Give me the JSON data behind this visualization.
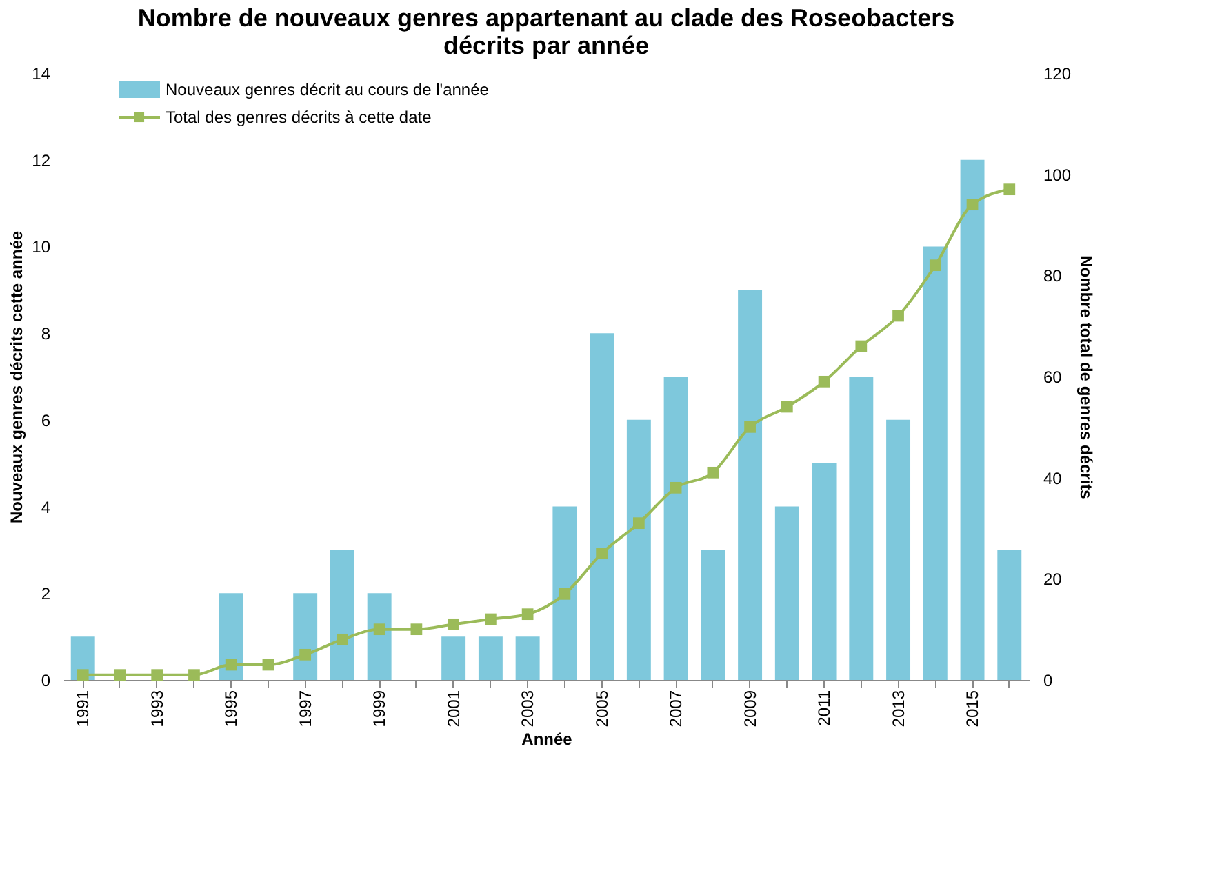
{
  "chart_data": {
    "type": "bar",
    "title": "Nombre de nouveaux genres appartenant au clade des Roseobacters\ndécrits par année",
    "xlabel": "Année",
    "ylabel": "Nouveaux genres décrits cette année",
    "y2label": "Nombre total de genres décrits",
    "categories": [
      "1991",
      null,
      "1993",
      null,
      "1995",
      null,
      "1997",
      null,
      "1999",
      null,
      "2001",
      null,
      "2003",
      null,
      "2005",
      null,
      "2007",
      null,
      "2009",
      null,
      "2011",
      null,
      "2013",
      null,
      "2015",
      null
    ],
    "series": [
      {
        "name": "Nouveaux genres décrit au cours de l'année",
        "color": "#7ec8dc",
        "values": [
          1,
          0,
          0,
          0,
          2,
          0,
          2,
          3,
          2,
          0,
          1,
          1,
          1,
          4,
          8,
          6,
          7,
          3,
          9,
          4,
          5,
          7,
          6,
          10,
          12,
          3
        ]
      },
      {
        "name": "Total des genres décrits à cette date",
        "type": "line",
        "axis": "y2",
        "color": "#9bbb59",
        "marker": "square",
        "values": [
          1,
          1,
          1,
          1,
          3,
          3,
          5,
          8,
          10,
          10,
          11,
          12,
          13,
          17,
          25,
          31,
          38,
          41,
          50,
          54,
          59,
          66,
          72,
          82,
          94,
          97
        ]
      }
    ],
    "ylim": [
      0,
      14
    ],
    "yticks": [
      0,
      2,
      4,
      6,
      8,
      10,
      12,
      14
    ],
    "y2lim": [
      0,
      120
    ],
    "y2ticks": [
      0,
      20,
      40,
      60,
      80,
      100,
      120
    ],
    "grid": false,
    "legend": "top left"
  }
}
